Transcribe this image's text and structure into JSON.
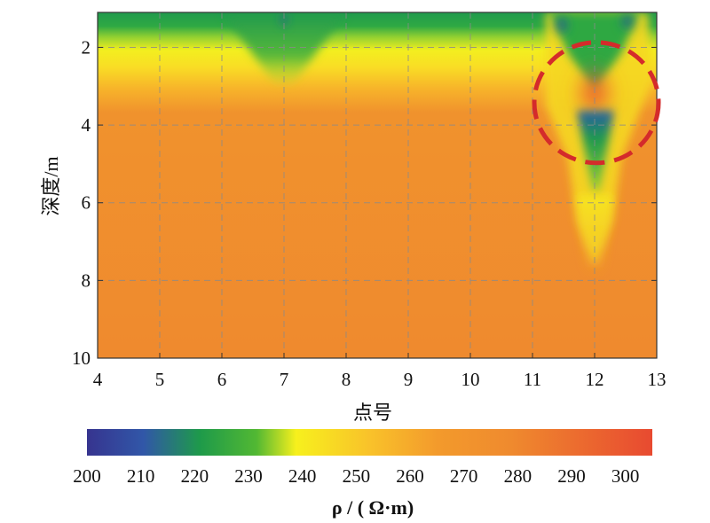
{
  "chart_data": {
    "type": "heatmap",
    "xlabel": "点号",
    "ylabel": "深度/m",
    "x_ticks": [
      4,
      5,
      6,
      7,
      8,
      9,
      10,
      11,
      12,
      13
    ],
    "y_ticks": [
      2,
      4,
      6,
      8,
      10
    ],
    "xlim": [
      4,
      13
    ],
    "ylim": [
      1.1,
      10
    ],
    "y_direction": "downward",
    "grid": true,
    "colorbar": {
      "label": "ρ / ( Ω·m)",
      "ticks": [
        200,
        210,
        220,
        230,
        240,
        250,
        260,
        270,
        280,
        290,
        300
      ],
      "range": [
        200,
        305
      ],
      "colors": [
        "#36348f",
        "#3157a8",
        "#1e9a4a",
        "#52b833",
        "#f7f01d",
        "#f9c22a",
        "#f39a2c",
        "#ef8a2e",
        "#e84a30"
      ]
    },
    "annotation": {
      "type": "dashed-circle",
      "color": "#d42b2b",
      "center": [
        12,
        3.4
      ],
      "note": "anomaly"
    },
    "features": [
      {
        "label": "shallow conductive layer",
        "depth_range": [
          1.1,
          2.0
        ],
        "value_range": [
          215,
          230
        ]
      },
      {
        "label": "transition zone",
        "depth_range": [
          2.0,
          3.6
        ],
        "value_range": [
          235,
          255
        ]
      },
      {
        "label": "background",
        "depth_range": [
          3.6,
          10
        ],
        "value_range": [
          265,
          272
        ]
      },
      {
        "label": "low-resistivity dip",
        "x": 7,
        "depth_max": 3.0,
        "value": 220
      },
      {
        "label": "anomaly low (upper)",
        "x": 12,
        "depth_range": [
          1.1,
          2.3
        ],
        "value": 235
      },
      {
        "label": "anomaly high",
        "x": 12,
        "depth_range": [
          2.6,
          3.6
        ],
        "value": 290
      },
      {
        "label": "anomaly low (lower)",
        "x": 12,
        "depth_range": [
          3.6,
          5.5
        ],
        "value": 222
      },
      {
        "label": "yellow tail",
        "x": 12,
        "depth_range": [
          5.5,
          8.0
        ],
        "value": 250
      }
    ]
  }
}
